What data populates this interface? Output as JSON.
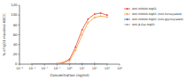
{
  "chart_data": {
    "type": "line",
    "x_label": "Concentration (ng/ml)",
    "y_label": "% of IgG1 maximal ADCC",
    "log": "x",
    "legend": "right",
    "marker": "circle",
    "x": [
      0.001,
      0.01,
      0.1,
      0.3,
      1,
      3,
      10,
      30,
      100,
      300,
      1000
    ],
    "xlim": [
      0.0001,
      10000
    ],
    "xticks": [
      {
        "value": 0.0001,
        "label": "10⁻⁴"
      },
      {
        "value": 0.001,
        "label": "10⁻³"
      },
      {
        "value": 0.01,
        "label": "10⁻²"
      },
      {
        "value": 0.1,
        "label": "10⁻¹"
      },
      {
        "value": 1,
        "label": "10⁰"
      },
      {
        "value": 10,
        "label": "10¹"
      },
      {
        "value": 100,
        "label": "10²"
      },
      {
        "value": 1000,
        "label": "10³"
      },
      {
        "value": 10000,
        "label": "10⁴"
      }
    ],
    "ylim": [
      0,
      120
    ],
    "yticks": [
      0,
      20,
      40,
      60,
      80,
      100,
      120
    ],
    "series": [
      {
        "name": "Anti-hOX40-hIgG1",
        "color": "#e8413c",
        "values": [
          0,
          0,
          1,
          3,
          10,
          35,
          70,
          92,
          102,
          104,
          100
        ]
      },
      {
        "name": "Anti-hOX40-hIgG1 (non-fucosylated)",
        "color": "#f5a03a",
        "values": [
          0,
          0,
          0,
          2,
          7,
          28,
          60,
          85,
          95,
          98,
          96
        ]
      },
      {
        "name": "Anti-hOX40-hIgG1 (non-glycosylated)",
        "color": "#3a6fc4",
        "values": [
          0,
          0,
          0,
          0,
          1,
          0,
          1,
          0,
          1,
          0,
          0
        ]
      },
      {
        "name": "Anti-β-Gal-hIgG1",
        "color": "#9a9a9a",
        "values": [
          0,
          0,
          0,
          0,
          0,
          1,
          0,
          0,
          1,
          0,
          0
        ]
      }
    ]
  }
}
